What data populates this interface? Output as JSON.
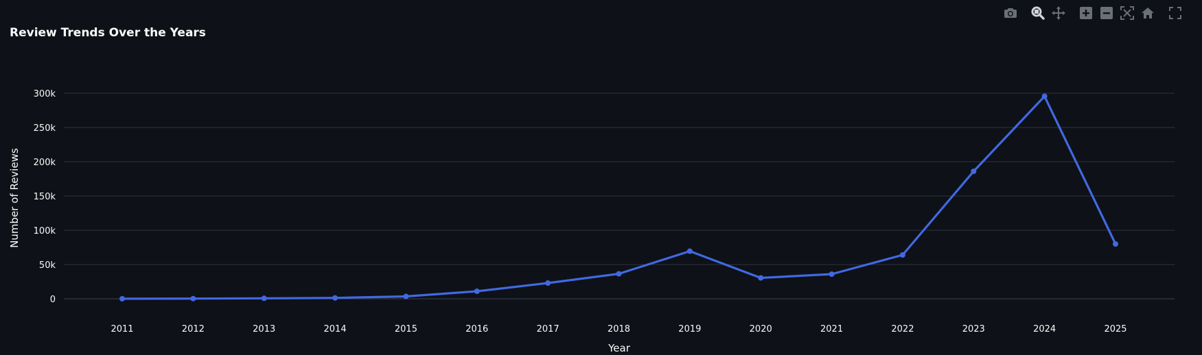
{
  "chart_data": {
    "type": "line",
    "title": "Review Trends Over the Years",
    "xlabel": "Year",
    "ylabel": "Number of Reviews",
    "categories": [
      "2011",
      "2012",
      "2013",
      "2014",
      "2015",
      "2016",
      "2017",
      "2018",
      "2019",
      "2020",
      "2021",
      "2022",
      "2023",
      "2024",
      "2025"
    ],
    "series": [
      {
        "values": [
          100,
          300,
          700,
          1300,
          3500,
          11000,
          23000,
          36500,
          69500,
          30500,
          36000,
          64000,
          186000,
          295500,
          80000
        ],
        "color": "#4169e1"
      }
    ],
    "ylim": [
      0,
      300000
    ],
    "yticks": [
      0,
      50000,
      100000,
      150000,
      200000,
      250000,
      300000
    ],
    "ytick_labels": [
      "0",
      "50k",
      "100k",
      "150k",
      "200k",
      "250k",
      "300k"
    ],
    "grid": true,
    "legend": "none"
  },
  "modebar": {
    "icons": [
      "camera-icon",
      "zoom-icon",
      "pan-icon",
      "zoom-in-icon",
      "zoom-out-icon",
      "autoscale-icon",
      "home-icon",
      "fullscreen-icon"
    ]
  },
  "colors": {
    "background": "#0e1117",
    "grid": "#2d323e",
    "text": "#fafafa",
    "icon": "#6b6f78",
    "line": "#4169e1"
  }
}
